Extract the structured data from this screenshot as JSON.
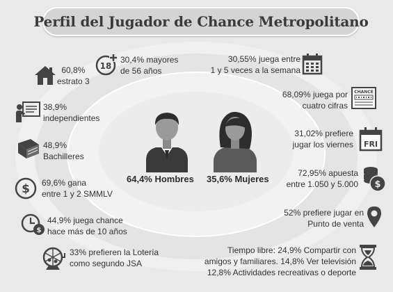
{
  "title": "Perfil del Jugador de Chance Metropolitano",
  "center": {
    "men_label": "64,4% Hombres",
    "women_label": "35,6% Mujeres"
  },
  "left_stats": {
    "age": {
      "icon": "age-18-plus-icon",
      "line1": "30,4% mayores",
      "line2": "de 56 años"
    },
    "strata": {
      "icon": "house-icon",
      "line1": "60,8%",
      "line2": "estrato 3"
    },
    "independent": {
      "icon": "teacher-board-icon",
      "line1": "38,9%",
      "line2": "independientes"
    },
    "education": {
      "icon": "book-icon",
      "line1": "48,9%",
      "line2": "Bachilleres"
    },
    "income": {
      "icon": "dollar-coin-icon",
      "line1": "69,6% gana",
      "line2": "entre 1 y 2 SMMLV"
    },
    "experience": {
      "icon": "clock-money-icon",
      "line1": "44,9% juega chance",
      "line2": "hace más de 10 años"
    },
    "lottery": {
      "icon": "lottery-drum-icon",
      "line1": "33% prefieren la Lotería",
      "line2": "como segundo JSA"
    }
  },
  "right_stats": {
    "frequency": {
      "icon": "calendar-icon",
      "line1": "30,55% juega entre",
      "line2": "1 y 5 veces a la semana"
    },
    "digits": {
      "icon": "chance-ticket-icon",
      "ticket_text": "CHANCE",
      "line1": "68,09%  juega por",
      "line2": "cuatro cifras"
    },
    "friday": {
      "icon": "friday-calendar-icon",
      "badge": "FRI",
      "line1": "31,02% prefiere",
      "line2": "jugar los viernes"
    },
    "bet": {
      "icon": "coins-stack-icon",
      "line1": "72,95% apuesta",
      "line2": "entre 1.050 y 5.000"
    },
    "place": {
      "icon": "map-pin-icon",
      "line1": "52% prefiere jugar en",
      "line2": "Punto de venta"
    },
    "free_time": {
      "icon": "hourglass-icon",
      "line1": "Tiempo libre: 24,9% Compartir con",
      "line2": "amigos y familiares. 14,8% Ver televisión",
      "line3": "12,8% Actividades recreativas o deporte"
    }
  },
  "colors": {
    "background": "#e9e9e9",
    "title_pill": "#d4d4d4",
    "icon": "#444444",
    "text": "#333333",
    "man_jacket": "#3a3a3a",
    "woman_shirt": "#5a5a5a"
  }
}
